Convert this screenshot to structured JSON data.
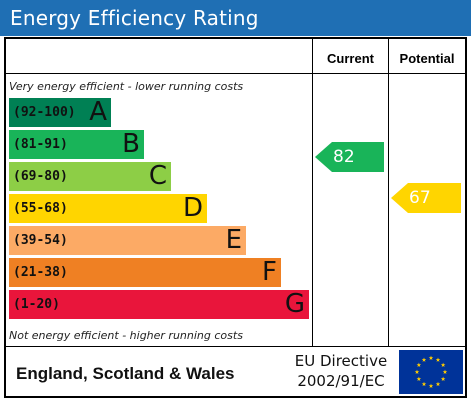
{
  "title": "Energy Efficiency Rating",
  "columns": {
    "current": "Current",
    "potential": "Potential"
  },
  "notes": {
    "top": "Very energy efficient - lower running costs",
    "bottom": "Not energy efficient - higher running costs"
  },
  "bands": [
    {
      "range": "(92-100)",
      "letter": "A",
      "color": "#008054"
    },
    {
      "range": "(81-91)",
      "letter": "B",
      "color": "#19b459"
    },
    {
      "range": "(69-80)",
      "letter": "C",
      "color": "#8dce46"
    },
    {
      "range": "(55-68)",
      "letter": "D",
      "color": "#ffd500"
    },
    {
      "range": "(39-54)",
      "letter": "E",
      "color": "#fcaa65"
    },
    {
      "range": "(21-38)",
      "letter": "F",
      "color": "#ef8023"
    },
    {
      "range": "(1-20)",
      "letter": "G",
      "color": "#e9153b"
    }
  ],
  "ratings": {
    "current": {
      "value": "82",
      "color": "#19b459"
    },
    "potential": {
      "value": "67",
      "color": "#ffd500"
    }
  },
  "footer": {
    "region": "England, Scotland & Wales",
    "directive_line1": "EU Directive",
    "directive_line2": "2002/91/EC"
  },
  "flag": {
    "background": "#003399",
    "star_color": "#ffcc00"
  }
}
